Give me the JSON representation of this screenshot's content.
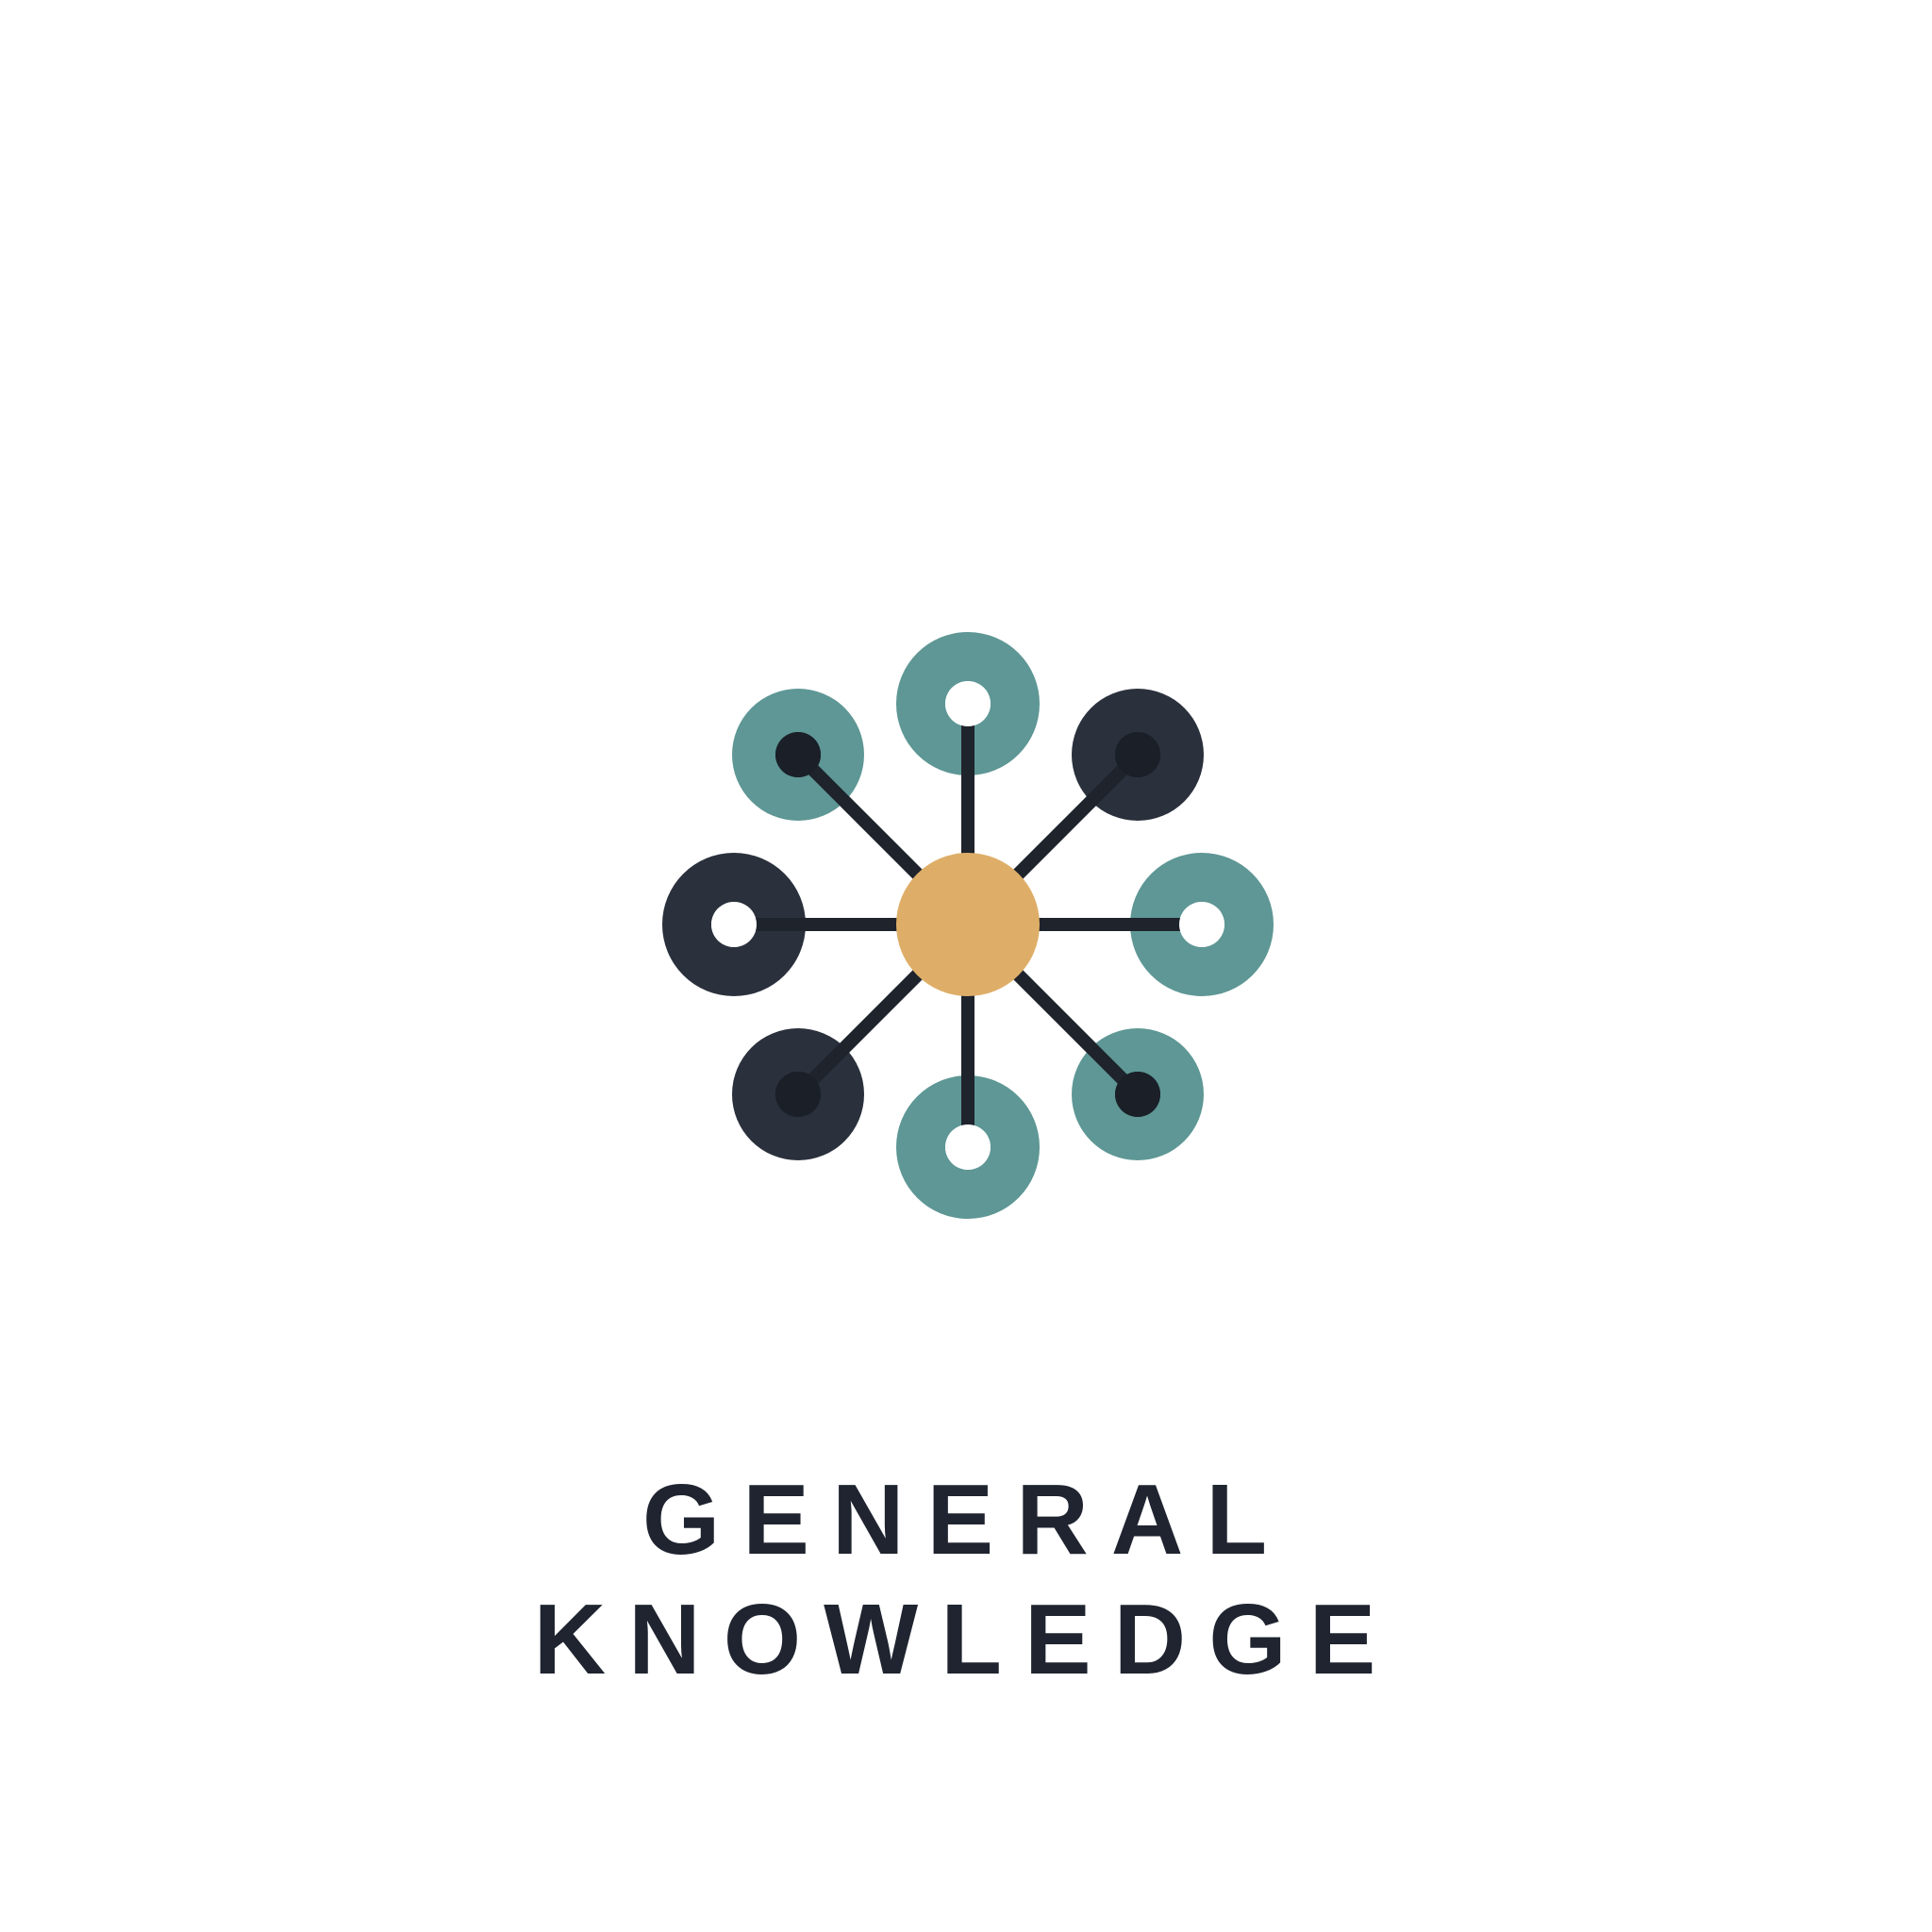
{
  "brand": {
    "line1": "GENERAL",
    "line2": "KNOWLEDGE"
  },
  "logo": {
    "icon": "network-hub-icon",
    "colors": {
      "hub": "#deae68",
      "teal": "#5e9795",
      "navy": "#2a303c",
      "stroke": "#1e232c",
      "inner_dark": "#1a1f28",
      "inner_light": "#ffffff",
      "text": "#1f2430"
    },
    "nodes": [
      {
        "name": "node-top",
        "color": "teal",
        "center": "light"
      },
      {
        "name": "node-top-right",
        "color": "navy",
        "center": "dark"
      },
      {
        "name": "node-right",
        "color": "teal",
        "center": "light"
      },
      {
        "name": "node-bottom-right",
        "color": "teal",
        "center": "dark"
      },
      {
        "name": "node-bottom",
        "color": "teal",
        "center": "light"
      },
      {
        "name": "node-bottom-left",
        "color": "navy",
        "center": "dark"
      },
      {
        "name": "node-left",
        "color": "navy",
        "center": "light"
      },
      {
        "name": "node-top-left",
        "color": "teal",
        "center": "dark"
      }
    ]
  }
}
